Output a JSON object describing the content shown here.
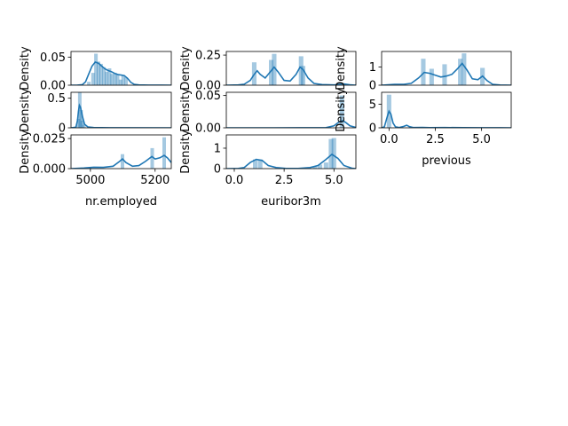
{
  "colors": {
    "kde_line": "#1f77b4",
    "hist_bar": "#1f77b4",
    "hist_alpha": 0.4,
    "spine": "#000000"
  },
  "chart_data": [
    {
      "id": "nr_employed_a",
      "type": "histogram+kde",
      "xlabel": "",
      "ylabel": "Density",
      "xlim": [
        4940,
        5250
      ],
      "ylim": [
        0,
        0.06
      ],
      "yticks": [
        0,
        0.05
      ],
      "ytick_labels": [
        "0.00",
        "0.05"
      ],
      "xticks": [],
      "xtick_labels": [],
      "bars": [
        [
          4995,
          0.006
        ],
        [
          5008,
          0.022
        ],
        [
          5017,
          0.056
        ],
        [
          5025,
          0.042
        ],
        [
          5033,
          0.038
        ],
        [
          5042,
          0.032
        ],
        [
          5050,
          0.024
        ],
        [
          5059,
          0.03
        ],
        [
          5067,
          0.02
        ],
        [
          5076,
          0.022
        ],
        [
          5084,
          0.02
        ],
        [
          5093,
          0.01
        ],
        [
          5101,
          0.018
        ],
        [
          5110,
          0.014
        ]
      ],
      "kde": [
        [
          4940,
          0
        ],
        [
          4960,
          0.0002
        ],
        [
          4975,
          0.001
        ],
        [
          4985,
          0.006
        ],
        [
          4995,
          0.02
        ],
        [
          5005,
          0.034
        ],
        [
          5015,
          0.041
        ],
        [
          5025,
          0.039
        ],
        [
          5035,
          0.034
        ],
        [
          5045,
          0.029
        ],
        [
          5055,
          0.026
        ],
        [
          5065,
          0.024
        ],
        [
          5075,
          0.021
        ],
        [
          5085,
          0.019
        ],
        [
          5095,
          0.018
        ],
        [
          5105,
          0.017
        ],
        [
          5115,
          0.012
        ],
        [
          5125,
          0.005
        ],
        [
          5135,
          0.0015
        ],
        [
          5150,
          0.0004
        ],
        [
          5180,
          0.0001
        ],
        [
          5220,
          0.0001
        ],
        [
          5250,
          0
        ]
      ]
    },
    {
      "id": "euribor3m_a",
      "type": "histogram+kde",
      "xlabel": "",
      "ylabel": "Density",
      "xlim": [
        -0.4,
        6.1
      ],
      "ylim": [
        0,
        0.28
      ],
      "yticks": [
        0,
        0.25
      ],
      "ytick_labels": [
        "0.00",
        "0.25"
      ],
      "xticks": [],
      "xtick_labels": [],
      "bars": [
        [
          1.0,
          0.19
        ],
        [
          1.85,
          0.21
        ],
        [
          2.0,
          0.26
        ],
        [
          3.35,
          0.24
        ],
        [
          3.45,
          0.16
        ]
      ],
      "kde": [
        [
          -0.4,
          0
        ],
        [
          0.2,
          0.002
        ],
        [
          0.5,
          0.008
        ],
        [
          0.8,
          0.04
        ],
        [
          1.0,
          0.09
        ],
        [
          1.15,
          0.12
        ],
        [
          1.3,
          0.09
        ],
        [
          1.55,
          0.06
        ],
        [
          1.8,
          0.11
        ],
        [
          2.0,
          0.15
        ],
        [
          2.2,
          0.11
        ],
        [
          2.5,
          0.04
        ],
        [
          2.8,
          0.035
        ],
        [
          3.1,
          0.09
        ],
        [
          3.3,
          0.15
        ],
        [
          3.45,
          0.13
        ],
        [
          3.7,
          0.06
        ],
        [
          4.0,
          0.015
        ],
        [
          4.4,
          0.005
        ],
        [
          5.0,
          0.002
        ],
        [
          5.5,
          0.01
        ],
        [
          5.8,
          0.004
        ],
        [
          6.1,
          0
        ]
      ]
    },
    {
      "id": "previous_a",
      "type": "histogram+kde",
      "xlabel": "",
      "ylabel": "Density",
      "xlim": [
        -0.4,
        6.6
      ],
      "ylim": [
        0,
        1.85
      ],
      "yticks": [
        0,
        1
      ],
      "ytick_labels": [
        "0",
        "1"
      ],
      "xticks": [],
      "xtick_labels": [],
      "bars": [
        [
          1.85,
          1.45
        ],
        [
          2.3,
          0.9
        ],
        [
          3.0,
          1.15
        ],
        [
          3.85,
          1.45
        ],
        [
          4.05,
          1.75
        ],
        [
          5.05,
          0.95
        ]
      ],
      "kde": [
        [
          -0.4,
          0
        ],
        [
          0.3,
          0.05
        ],
        [
          0.8,
          0.05
        ],
        [
          1.2,
          0.1
        ],
        [
          1.6,
          0.4
        ],
        [
          1.9,
          0.7
        ],
        [
          2.2,
          0.65
        ],
        [
          2.5,
          0.55
        ],
        [
          2.8,
          0.45
        ],
        [
          3.1,
          0.5
        ],
        [
          3.4,
          0.6
        ],
        [
          3.7,
          0.9
        ],
        [
          3.95,
          1.2
        ],
        [
          4.2,
          0.85
        ],
        [
          4.5,
          0.35
        ],
        [
          4.8,
          0.3
        ],
        [
          5.05,
          0.5
        ],
        [
          5.3,
          0.25
        ],
        [
          5.6,
          0.05
        ],
        [
          6.0,
          0.01
        ],
        [
          6.6,
          0
        ]
      ]
    },
    {
      "id": "nr_employed_b",
      "type": "histogram+kde",
      "xlabel": "",
      "ylabel": "Density",
      "xlim": [
        4940,
        5250
      ],
      "ylim": [
        0,
        0.6
      ],
      "yticks": [
        0,
        0.5
      ],
      "ytick_labels": [
        "0",
        "0.5"
      ],
      "xticks": [],
      "xtick_labels": [],
      "bars": [
        [
          4963,
          0.15
        ],
        [
          4967,
          0.6
        ],
        [
          4971,
          0.3
        ],
        [
          4975,
          0.12
        ],
        [
          4980,
          0.05
        ]
      ],
      "kde": [
        [
          4940,
          0
        ],
        [
          4955,
          0.01
        ],
        [
          4960,
          0.12
        ],
        [
          4963,
          0.28
        ],
        [
          4966,
          0.38
        ],
        [
          4969,
          0.35
        ],
        [
          4972,
          0.28
        ],
        [
          4976,
          0.18
        ],
        [
          4982,
          0.06
        ],
        [
          4992,
          0.015
        ],
        [
          5010,
          0.004
        ],
        [
          5060,
          0.001
        ],
        [
          5250,
          0
        ]
      ]
    },
    {
      "id": "euribor3m_b",
      "type": "histogram+kde",
      "xlabel": "",
      "ylabel": "Density",
      "xlim": [
        -0.4,
        6.1
      ],
      "ylim": [
        0,
        0.055
      ],
      "yticks": [
        0,
        0.05
      ],
      "ytick_labels": [
        "0.00",
        "0.05"
      ],
      "xticks": [],
      "xtick_labels": [],
      "bars": [
        [
          5.4,
          0.05
        ]
      ],
      "kde": [
        [
          -0.4,
          0
        ],
        [
          2.0,
          0
        ],
        [
          4.6,
          0.0003
        ],
        [
          5.0,
          0.003
        ],
        [
          5.25,
          0.009
        ],
        [
          5.45,
          0.011
        ],
        [
          5.6,
          0.008
        ],
        [
          5.8,
          0.003
        ],
        [
          6.1,
          0.0005
        ]
      ]
    },
    {
      "id": "previous_b",
      "type": "histogram+kde",
      "xlabel": "previous",
      "ylabel": "Density",
      "xlim": [
        -0.4,
        6.6
      ],
      "ylim": [
        0,
        7.5
      ],
      "yticks": [
        0,
        5
      ],
      "ytick_labels": [
        "0",
        "5"
      ],
      "xticks": [
        0,
        2.5,
        5
      ],
      "xtick_labels": [
        "0.0",
        "2.5",
        "5.0"
      ],
      "bars": [
        [
          0.0,
          7.0
        ]
      ],
      "kde": [
        [
          -0.4,
          0
        ],
        [
          -0.25,
          0.2
        ],
        [
          -0.1,
          2.3
        ],
        [
          0.0,
          3.5
        ],
        [
          0.1,
          2.9
        ],
        [
          0.22,
          1.0
        ],
        [
          0.35,
          0.2
        ],
        [
          0.55,
          0.05
        ],
        [
          0.8,
          0.3
        ],
        [
          0.95,
          0.55
        ],
        [
          1.1,
          0.25
        ],
        [
          1.3,
          0.05
        ],
        [
          1.8,
          0.1
        ],
        [
          2.2,
          0.03
        ],
        [
          3.0,
          0.05
        ],
        [
          4.0,
          0.03
        ],
        [
          5.0,
          0.02
        ],
        [
          6.0,
          0.01
        ],
        [
          6.6,
          0
        ]
      ]
    },
    {
      "id": "nr_employed_c",
      "type": "histogram+kde",
      "xlabel": "nr.employed",
      "ylabel": "Density",
      "xlim": [
        4940,
        5250
      ],
      "ylim": [
        0,
        0.028
      ],
      "yticks": [
        0,
        0.025
      ],
      "ytick_labels": [
        "0.000",
        "0.025"
      ],
      "xticks": [
        5000,
        5200
      ],
      "xtick_labels": [
        "5000",
        "5200"
      ],
      "bars": [
        [
          5099,
          0.012
        ],
        [
          5191,
          0.017
        ],
        [
          5228,
          0.026
        ]
      ],
      "kde": [
        [
          4940,
          0
        ],
        [
          4980,
          0.0005
        ],
        [
          5010,
          0.0012
        ],
        [
          5040,
          0.001
        ],
        [
          5070,
          0.002
        ],
        [
          5090,
          0.006
        ],
        [
          5099,
          0.008
        ],
        [
          5110,
          0.005
        ],
        [
          5130,
          0.002
        ],
        [
          5150,
          0.0025
        ],
        [
          5170,
          0.006
        ],
        [
          5190,
          0.01
        ],
        [
          5200,
          0.008
        ],
        [
          5215,
          0.009
        ],
        [
          5228,
          0.011
        ],
        [
          5238,
          0.009
        ],
        [
          5250,
          0.005
        ]
      ]
    },
    {
      "id": "euribor3m_c",
      "type": "histogram+kde",
      "xlabel": "euribor3m",
      "ylabel": "Density",
      "xlim": [
        -0.4,
        6.1
      ],
      "ylim": [
        0,
        1.65
      ],
      "yticks": [
        0,
        1
      ],
      "ytick_labels": [
        "0",
        "1"
      ],
      "xticks": [
        0,
        2.5,
        5
      ],
      "xtick_labels": [
        "0.0",
        "2.5",
        "5.0"
      ],
      "bars": [
        [
          1.05,
          0.45
        ],
        [
          1.3,
          0.45
        ],
        [
          4.05,
          0.1
        ],
        [
          4.3,
          0.2
        ],
        [
          4.6,
          0.3
        ],
        [
          4.85,
          1.45
        ],
        [
          5.0,
          1.5
        ]
      ],
      "kde": [
        [
          -0.4,
          0
        ],
        [
          0.2,
          0.01
        ],
        [
          0.5,
          0.05
        ],
        [
          0.8,
          0.3
        ],
        [
          1.1,
          0.45
        ],
        [
          1.4,
          0.4
        ],
        [
          1.7,
          0.15
        ],
        [
          2.1,
          0.05
        ],
        [
          2.6,
          0.01
        ],
        [
          3.2,
          0.01
        ],
        [
          3.8,
          0.05
        ],
        [
          4.2,
          0.15
        ],
        [
          4.6,
          0.45
        ],
        [
          4.9,
          0.7
        ],
        [
          5.2,
          0.5
        ],
        [
          5.5,
          0.15
        ],
        [
          5.9,
          0.02
        ],
        [
          6.1,
          0
        ]
      ]
    }
  ]
}
